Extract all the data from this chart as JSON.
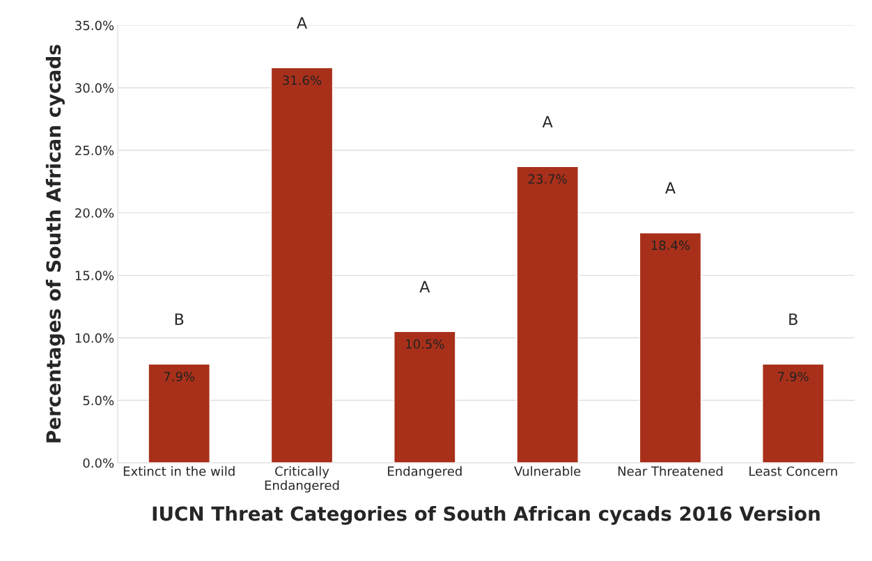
{
  "chart_data": {
    "type": "bar",
    "xlabel": "IUCN Threat Categories of South African cycads 2016 Version",
    "ylabel": "Percentages of South African cycads",
    "categories": [
      "Extinct in the wild",
      "Critically\nEndangered",
      "Endangered",
      "Vulnerable",
      "Near Threatened",
      "Least Concern"
    ],
    "values": [
      7.9,
      31.6,
      10.5,
      23.7,
      18.4,
      7.9
    ],
    "value_labels": [
      "7.9%",
      "31.6%",
      "10.5%",
      "23.7%",
      "18.4%",
      "7.9%"
    ],
    "color": "#a8301a",
    "ylim": [
      0,
      35
    ],
    "yticks": [
      {
        "value": 0,
        "label": "0.0%"
      },
      {
        "value": 5,
        "label": "5.0%"
      },
      {
        "value": 10,
        "label": "10.0%"
      },
      {
        "value": 15,
        "label": "15.0%"
      },
      {
        "value": 20,
        "label": "20.0%"
      },
      {
        "value": 25,
        "label": "25.0%"
      },
      {
        "value": 30,
        "label": "30.0%"
      },
      {
        "value": 35,
        "label": "35.0%"
      }
    ],
    "grid": "y",
    "legend": false,
    "annotations": [
      "B",
      "A",
      "A",
      "A",
      "A",
      "B"
    ]
  }
}
